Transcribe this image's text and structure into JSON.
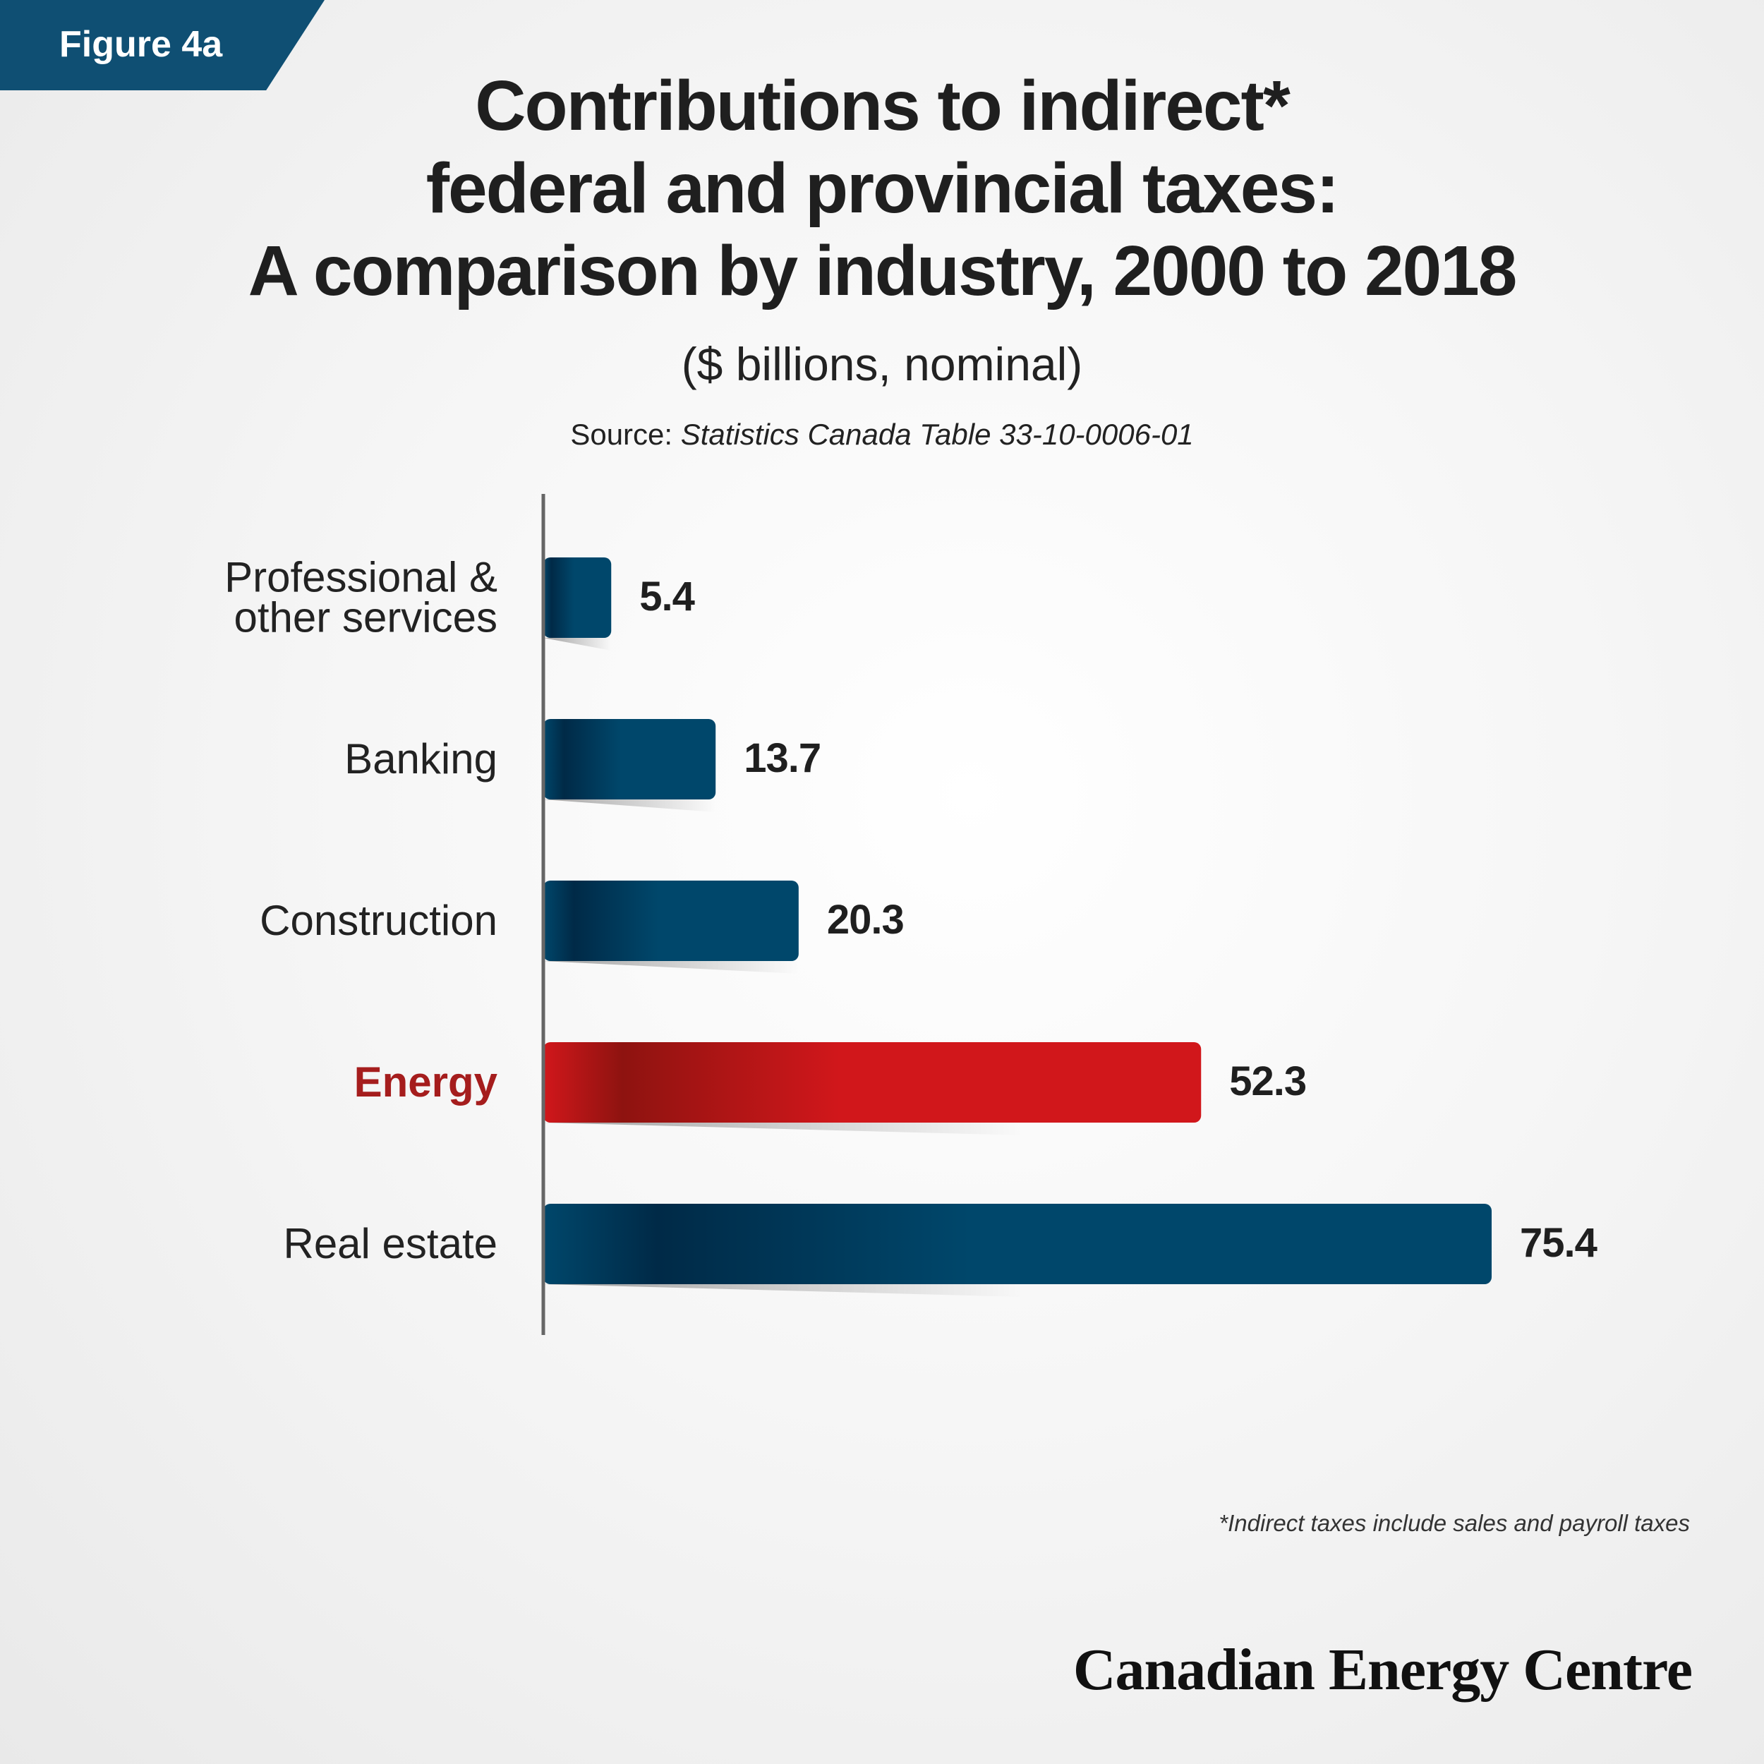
{
  "figure_tag": "Figure 4a",
  "title_lines": [
    "Contributions to indirect*",
    "federal and provincial taxes:",
    "A comparison by industry, 2000 to 2018"
  ],
  "subtitle": "($ billions, nominal)",
  "source": {
    "label": "Source: ",
    "name": "Statistics Canada Table 33-10-0006-01"
  },
  "footnote": "*Indirect taxes include sales and payroll taxes",
  "brand": "Canadian Energy Centre",
  "colors": {
    "bar_blue": "#00476b",
    "bar_blue_dark": "#002a47",
    "bar_red": "#d1171b",
    "bar_red_dark": "#8e1310",
    "highlight_label": "#a51d1d",
    "tag_bg": "#0f4f73"
  },
  "chart_data": {
    "type": "bar",
    "orientation": "horizontal",
    "categories": [
      [
        "Professional &",
        "other services"
      ],
      [
        "Banking"
      ],
      [
        "Construction"
      ],
      [
        "Energy"
      ],
      [
        "Real estate"
      ]
    ],
    "values": [
      5.4,
      13.7,
      20.3,
      52.3,
      75.4
    ],
    "value_labels": [
      "5.4",
      "13.7",
      "20.3",
      "52.3",
      "75.4"
    ],
    "highlight_index": 3,
    "xlim": [
      0,
      75.4
    ],
    "title": "Contributions to indirect* federal and provincial taxes: A comparison by industry, 2000 to 2018",
    "unit": "($ billions, nominal)",
    "grid": false,
    "legend": "none"
  }
}
